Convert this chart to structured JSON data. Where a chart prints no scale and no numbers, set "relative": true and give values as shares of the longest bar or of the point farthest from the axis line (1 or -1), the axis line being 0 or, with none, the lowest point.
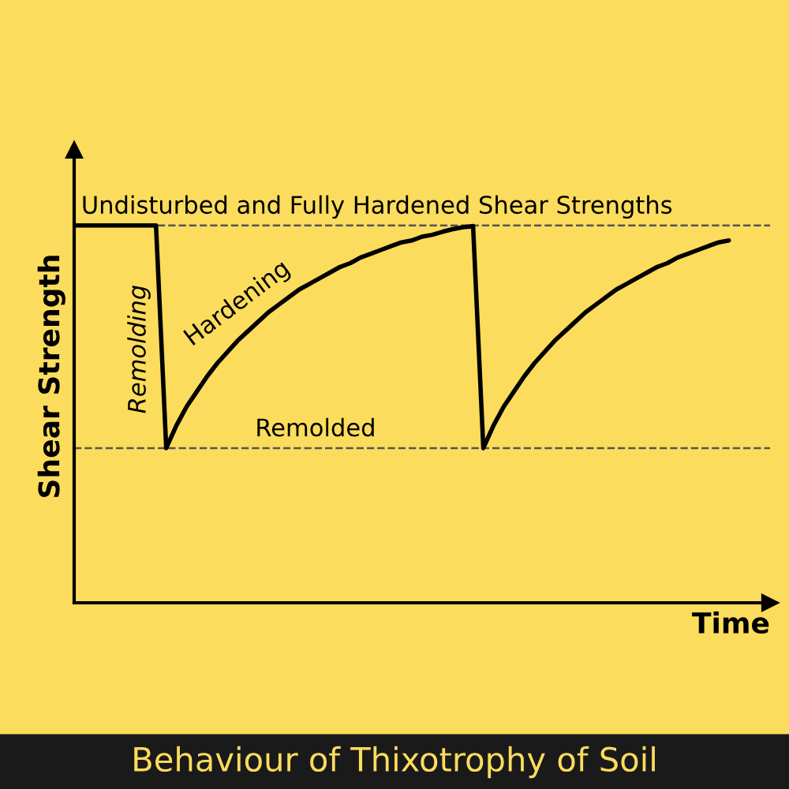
{
  "chart_data": {
    "type": "line",
    "title": "Behaviour of Thixotrophy of Soil",
    "xlabel": "Time",
    "ylabel": "Shear Strength",
    "relative": true,
    "categories": [
      null,
      null,
      null,
      null,
      null,
      null,
      null,
      null,
      null,
      null,
      null,
      null,
      null,
      null,
      null,
      null,
      null,
      null,
      null,
      null,
      null,
      null,
      null,
      null,
      null,
      null,
      null,
      null,
      null,
      null,
      null,
      null,
      null,
      null,
      null,
      null,
      null,
      null,
      null,
      null,
      null,
      null,
      null,
      null,
      null,
      null,
      null,
      null,
      null,
      null,
      null,
      null,
      null,
      null,
      null,
      null,
      null,
      null,
      null,
      null,
      null,
      null,
      null,
      null,
      null
    ],
    "series": [
      {
        "color": "#000000",
        "values": [
          1,
          1,
          1,
          1,
          1,
          1,
          1,
          1,
          1,
          0.41,
          0.47,
          0.52,
          0.56,
          0.6,
          0.635,
          0.665,
          0.695,
          0.72,
          0.745,
          0.77,
          0.79,
          0.81,
          0.83,
          0.845,
          0.86,
          0.875,
          0.89,
          0.9,
          0.915,
          0.925,
          0.935,
          0.945,
          0.955,
          0.96,
          0.97,
          0.975,
          0.983,
          0.99,
          0.995,
          0.998,
          0.41,
          0.47,
          0.52,
          0.56,
          0.6,
          0.635,
          0.665,
          0.695,
          0.72,
          0.745,
          0.77,
          0.79,
          0.81,
          0.83,
          0.845,
          0.86,
          0.875,
          0.89,
          0.9,
          0.915,
          0.925,
          0.935,
          0.945,
          0.955,
          0.96
        ]
      }
    ],
    "ref_lines": [
      {
        "axis": "y",
        "value": 1,
        "label": "Undisturbed and Fully Hardened Shear Strengths",
        "color": "#555555",
        "line_style": "dashed"
      },
      {
        "axis": "y",
        "value": 0.41,
        "label": "Remolded",
        "color": "#555555",
        "line_style": "dashed"
      }
    ],
    "annotations": [
      "Remolding",
      "Hardening"
    ],
    "marker": "none",
    "line_style": "solid"
  }
}
